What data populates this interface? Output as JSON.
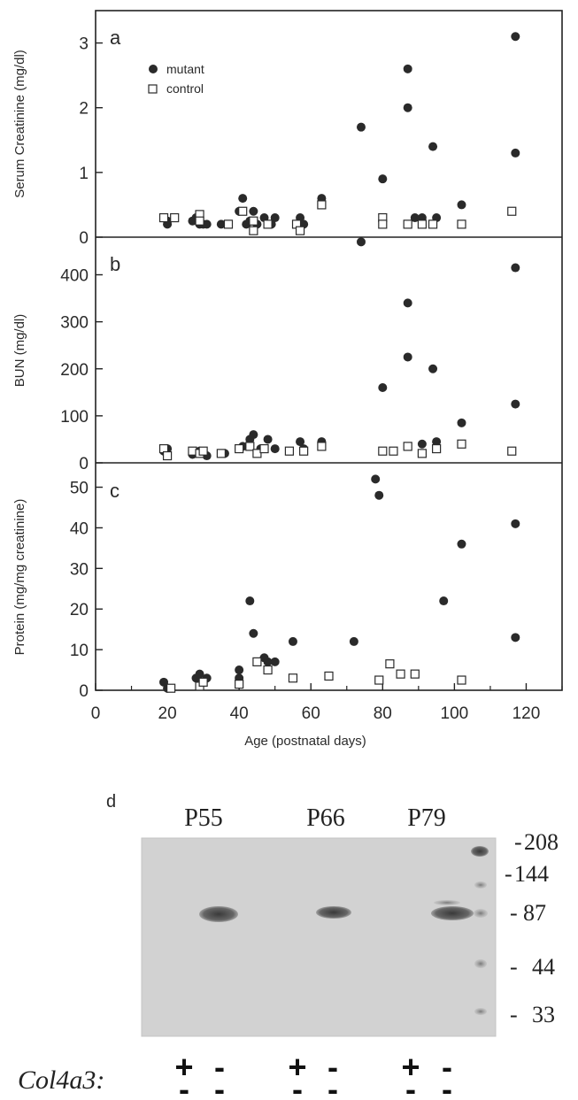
{
  "chart_data": [
    {
      "panel": "a",
      "type": "scatter",
      "ylabel": "Serum Creatinine (mg/dl)",
      "ylim": [
        0,
        3.5
      ],
      "yticks": [
        "0",
        "1",
        "2",
        "3"
      ],
      "ytick_values": [
        0,
        1,
        2,
        3
      ],
      "legend": {
        "placement": "top-left",
        "entries": [
          "mutant",
          "control"
        ]
      },
      "series": [
        {
          "name": "mutant",
          "points": [
            [
              19,
              0.3
            ],
            [
              20,
              0.2
            ],
            [
              20,
              0.25
            ],
            [
              27,
              0.25
            ],
            [
              28,
              0.3
            ],
            [
              29,
              0.2
            ],
            [
              30,
              0.2
            ],
            [
              31,
              0.2
            ],
            [
              35,
              0.2
            ],
            [
              40,
              0.4
            ],
            [
              41,
              0.6
            ],
            [
              42,
              0.2
            ],
            [
              43,
              0.25
            ],
            [
              44,
              0.4
            ],
            [
              45,
              0.2
            ],
            [
              47,
              0.3
            ],
            [
              49,
              0.2
            ],
            [
              50,
              0.3
            ],
            [
              57,
              0.3
            ],
            [
              58,
              0.2
            ],
            [
              63,
              0.6
            ],
            [
              74,
              1.7
            ],
            [
              80,
              0.9
            ],
            [
              87,
              2.6
            ],
            [
              87,
              2.0
            ],
            [
              89,
              0.3
            ],
            [
              91,
              0.3
            ],
            [
              94,
              1.4
            ],
            [
              95,
              0.3
            ],
            [
              102,
              0.5
            ],
            [
              117,
              3.1
            ],
            [
              117,
              1.3
            ]
          ]
        },
        {
          "name": "control",
          "points": [
            [
              19,
              0.3
            ],
            [
              22,
              0.3
            ],
            [
              29,
              0.35
            ],
            [
              29,
              0.25
            ],
            [
              37,
              0.2
            ],
            [
              41,
              0.4
            ],
            [
              44,
              0.1
            ],
            [
              44,
              0.25
            ],
            [
              48,
              0.2
            ],
            [
              56,
              0.2
            ],
            [
              57,
              0.1
            ],
            [
              63,
              0.5
            ],
            [
              80,
              0.3
            ],
            [
              80,
              0.2
            ],
            [
              87,
              0.2
            ],
            [
              91,
              0.2
            ],
            [
              94,
              0.2
            ],
            [
              102,
              0.2
            ],
            [
              116,
              0.4
            ]
          ]
        }
      ]
    },
    {
      "panel": "b",
      "type": "scatter",
      "ylabel": "BUN (mg/dl)",
      "ylim": [
        0,
        480
      ],
      "yticks": [
        "0",
        "100",
        "200",
        "300",
        "400"
      ],
      "ytick_values": [
        0,
        100,
        200,
        300,
        400
      ],
      "series": [
        {
          "name": "mutant",
          "points": [
            [
              19,
              25
            ],
            [
              20,
              30
            ],
            [
              27,
              18
            ],
            [
              29,
              25
            ],
            [
              31,
              15
            ],
            [
              36,
              20
            ],
            [
              40,
              30
            ],
            [
              41,
              35
            ],
            [
              43,
              50
            ],
            [
              44,
              60
            ],
            [
              46,
              30
            ],
            [
              48,
              50
            ],
            [
              50,
              30
            ],
            [
              57,
              45
            ],
            [
              58,
              30
            ],
            [
              63,
              45
            ],
            [
              74,
              470
            ],
            [
              80,
              160
            ],
            [
              87,
              340
            ],
            [
              87,
              225
            ],
            [
              91,
              40
            ],
            [
              94,
              200
            ],
            [
              95,
              45
            ],
            [
              102,
              85
            ],
            [
              117,
              415
            ],
            [
              117,
              125
            ]
          ]
        },
        {
          "name": "control",
          "points": [
            [
              19,
              30
            ],
            [
              20,
              15
            ],
            [
              27,
              25
            ],
            [
              29,
              20
            ],
            [
              30,
              25
            ],
            [
              35,
              20
            ],
            [
              40,
              30
            ],
            [
              43,
              35
            ],
            [
              45,
              20
            ],
            [
              47,
              30
            ],
            [
              54,
              25
            ],
            [
              58,
              25
            ],
            [
              63,
              35
            ],
            [
              80,
              25
            ],
            [
              83,
              25
            ],
            [
              87,
              35
            ],
            [
              91,
              20
            ],
            [
              95,
              30
            ],
            [
              102,
              40
            ],
            [
              116,
              25
            ]
          ]
        }
      ]
    },
    {
      "panel": "c",
      "type": "scatter",
      "ylabel": "Protein (mg/mg creatinine)",
      "xlabel": "Age (postnatal days)",
      "xlim": [
        0,
        130
      ],
      "xticks": [
        "0",
        "20",
        "40",
        "60",
        "80",
        "100",
        "120"
      ],
      "xtick_values": [
        0,
        20,
        40,
        60,
        80,
        100,
        120
      ],
      "ylim": [
        0,
        56
      ],
      "yticks": [
        "0",
        "10",
        "20",
        "30",
        "40",
        "50"
      ],
      "ytick_values": [
        0,
        10,
        20,
        30,
        40,
        50
      ],
      "series": [
        {
          "name": "mutant",
          "points": [
            [
              19,
              2
            ],
            [
              20,
              0.5
            ],
            [
              28,
              3
            ],
            [
              29,
              4
            ],
            [
              31,
              3
            ],
            [
              40,
              5
            ],
            [
              40,
              3
            ],
            [
              43,
              22
            ],
            [
              44,
              14
            ],
            [
              47,
              8
            ],
            [
              48,
              7
            ],
            [
              50,
              7
            ],
            [
              55,
              12
            ],
            [
              72,
              12
            ],
            [
              78,
              52
            ],
            [
              79,
              48
            ],
            [
              97,
              22
            ],
            [
              102,
              36
            ],
            [
              117,
              41
            ],
            [
              117,
              13
            ]
          ]
        },
        {
          "name": "control",
          "points": [
            [
              21,
              0.5
            ],
            [
              29,
              1
            ],
            [
              30,
              2
            ],
            [
              40,
              1.5
            ],
            [
              45,
              7
            ],
            [
              48,
              5
            ],
            [
              55,
              3
            ],
            [
              65,
              3.5
            ],
            [
              79,
              2.5
            ],
            [
              82,
              6.5
            ],
            [
              85,
              4
            ],
            [
              89,
              4
            ],
            [
              102,
              2.5
            ]
          ]
        }
      ]
    }
  ],
  "gel": {
    "panel_label": "d",
    "lanes": [
      "P55",
      "P66",
      "P79"
    ],
    "markers": [
      "208",
      "144",
      "87",
      "44",
      "33"
    ],
    "genotype_label": "Col4a3:",
    "genotypes": [
      "+",
      "-",
      "+",
      "-",
      "+",
      "-"
    ],
    "genotypes_bottom": [
      "-",
      "-",
      "-",
      "-",
      "-",
      "-"
    ]
  }
}
